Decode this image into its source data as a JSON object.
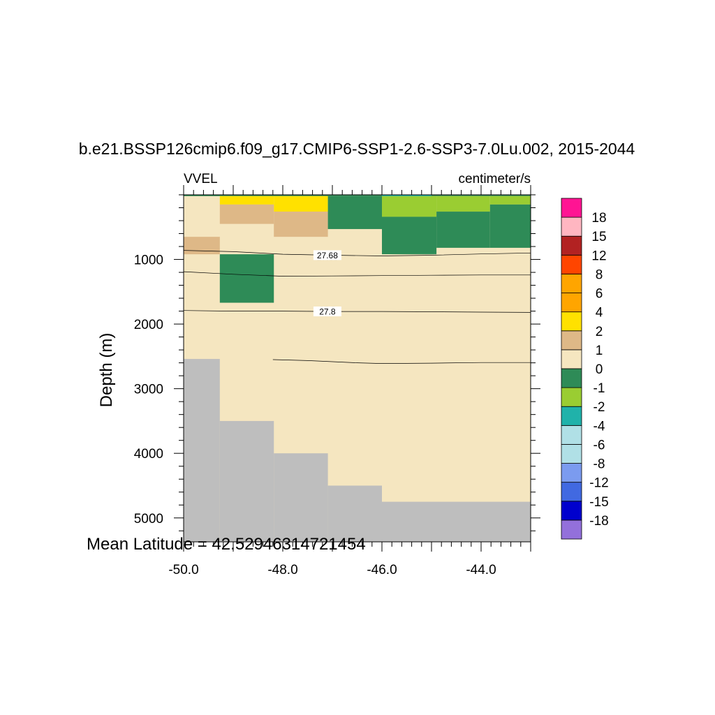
{
  "chart_data": {
    "type": "heatmap",
    "title": "b.e21.BSSP126cmip6.f09_g17.CMIP6-SSP1-2.6-SSP3-7.0Lu.002, 2015-2044",
    "left_label": "VVEL",
    "right_label": "centimeter/s",
    "ylabel": "Depth (m)",
    "xlabel": "",
    "annotation": "Mean Latitude = 42.52946314721454",
    "xlim": [
      -50.0,
      -43.0
    ],
    "ylim": [
      5370,
      0
    ],
    "x_ticks": [
      -50.0,
      -48.0,
      -46.0,
      -44.0
    ],
    "x_tick_labels": [
      "-50.0",
      "-48.0",
      "-46.0",
      "-44.0"
    ],
    "y_ticks": [
      1000,
      2000,
      3000,
      4000,
      5000
    ],
    "y_tick_labels": [
      "1000",
      "2000",
      "3000",
      "4000",
      "5000"
    ],
    "colorbar": {
      "colors": [
        "#9370db",
        "#0000cd",
        "#4169e1",
        "#7b9bef",
        "#b0e0e6",
        "#b0e0e6",
        "#20b2aa",
        "#9acd32",
        "#2e8b57",
        "#f5e6c0",
        "#deb887",
        "#ffe100",
        "#ffa500",
        "#ffa500",
        "#ff4500",
        "#b22222",
        "#ffb6c1",
        "#ff1493"
      ],
      "labels": [
        "-18",
        "-15",
        "-12",
        "-8",
        "-6",
        "-4",
        "-2",
        "-1",
        "0",
        "1",
        "2",
        "4",
        "6",
        "8",
        "12",
        "15",
        "18"
      ]
    },
    "background_value_color": "#f5e6c0",
    "land_color": "#bebebe",
    "cells": [
      {
        "x": [
          -50.0,
          -43.0
        ],
        "depth": [
          0,
          5370
        ],
        "color": "#f5e6c0"
      },
      {
        "x": [
          -50.0,
          -43.0
        ],
        "depth": [
          0,
          20
        ],
        "color": "#2e8b57"
      },
      {
        "x": [
          -46.0,
          -45.0
        ],
        "depth": [
          0,
          30
        ],
        "color": "#20b2aa"
      },
      {
        "x": [
          -49.27,
          -48.18
        ],
        "depth": [
          20,
          150
        ],
        "color": "#ffe100"
      },
      {
        "x": [
          -48.18,
          -47.09
        ],
        "depth": [
          20,
          260
        ],
        "color": "#ffe100"
      },
      {
        "x": [
          -49.27,
          -48.18
        ],
        "depth": [
          150,
          450
        ],
        "color": "#deb887"
      },
      {
        "x": [
          -48.18,
          -47.09
        ],
        "depth": [
          260,
          650
        ],
        "color": "#deb887"
      },
      {
        "x": [
          -50.0,
          -49.27
        ],
        "depth": [
          650,
          920
        ],
        "color": "#deb887"
      },
      {
        "x": [
          -47.09,
          -46.0
        ],
        "depth": [
          20,
          530
        ],
        "color": "#2e8b57"
      },
      {
        "x": [
          -46.0,
          -44.9
        ],
        "depth": [
          20,
          340
        ],
        "color": "#9acd32"
      },
      {
        "x": [
          -44.9,
          -43.82
        ],
        "depth": [
          20,
          260
        ],
        "color": "#9acd32"
      },
      {
        "x": [
          -43.82,
          -43.0
        ],
        "depth": [
          20,
          150
        ],
        "color": "#9acd32"
      },
      {
        "x": [
          -46.0,
          -44.9
        ],
        "depth": [
          340,
          920
        ],
        "color": "#2e8b57"
      },
      {
        "x": [
          -44.9,
          -43.82
        ],
        "depth": [
          260,
          820
        ],
        "color": "#2e8b57"
      },
      {
        "x": [
          -43.82,
          -43.0
        ],
        "depth": [
          150,
          820
        ],
        "color": "#2e8b57"
      },
      {
        "x": [
          -49.27,
          -48.18
        ],
        "depth": [
          920,
          1670
        ],
        "color": "#2e8b57"
      },
      {
        "x": [
          -50.0,
          -49.27
        ],
        "depth": [
          2540,
          5370
        ],
        "color": "#bebebe"
      },
      {
        "x": [
          -49.27,
          -48.18
        ],
        "depth": [
          3500,
          5370
        ],
        "color": "#bebebe"
      },
      {
        "x": [
          -48.18,
          -47.09
        ],
        "depth": [
          4000,
          5370
        ],
        "color": "#bebebe"
      },
      {
        "x": [
          -47.09,
          -46.0
        ],
        "depth": [
          4500,
          5370
        ],
        "color": "#bebebe"
      },
      {
        "x": [
          -46.0,
          -43.0
        ],
        "depth": [
          4750,
          5370
        ],
        "color": "#bebebe"
      }
    ],
    "contours": [
      {
        "label": "27.68",
        "label_x": -47.1,
        "points": [
          [
            -50.0,
            860
          ],
          [
            -49.0,
            880
          ],
          [
            -48.0,
            920
          ],
          [
            -47.0,
            935
          ],
          [
            -46.0,
            945
          ],
          [
            -45.0,
            935
          ],
          [
            -44.0,
            915
          ],
          [
            -43.0,
            900
          ]
        ]
      },
      {
        "label": "",
        "label_x": null,
        "points": [
          [
            -50.0,
            1190
          ],
          [
            -49.0,
            1230
          ],
          [
            -48.0,
            1260
          ],
          [
            -47.0,
            1255
          ],
          [
            -46.0,
            1250
          ],
          [
            -45.0,
            1245
          ],
          [
            -44.0,
            1240
          ],
          [
            -43.0,
            1240
          ]
        ]
      },
      {
        "label": "27.8",
        "label_x": -47.1,
        "points": [
          [
            -50.0,
            1790
          ],
          [
            -49.0,
            1800
          ],
          [
            -48.0,
            1800
          ],
          [
            -47.0,
            1805
          ],
          [
            -46.0,
            1805
          ],
          [
            -45.0,
            1810
          ],
          [
            -44.0,
            1815
          ],
          [
            -43.0,
            1820
          ]
        ]
      },
      {
        "label": "",
        "label_x": null,
        "points": [
          [
            -48.2,
            2550
          ],
          [
            -47.5,
            2565
          ],
          [
            -46.5,
            2600
          ],
          [
            -46.0,
            2610
          ],
          [
            -45.0,
            2605
          ],
          [
            -44.0,
            2595
          ],
          [
            -43.0,
            2595
          ]
        ]
      }
    ]
  }
}
